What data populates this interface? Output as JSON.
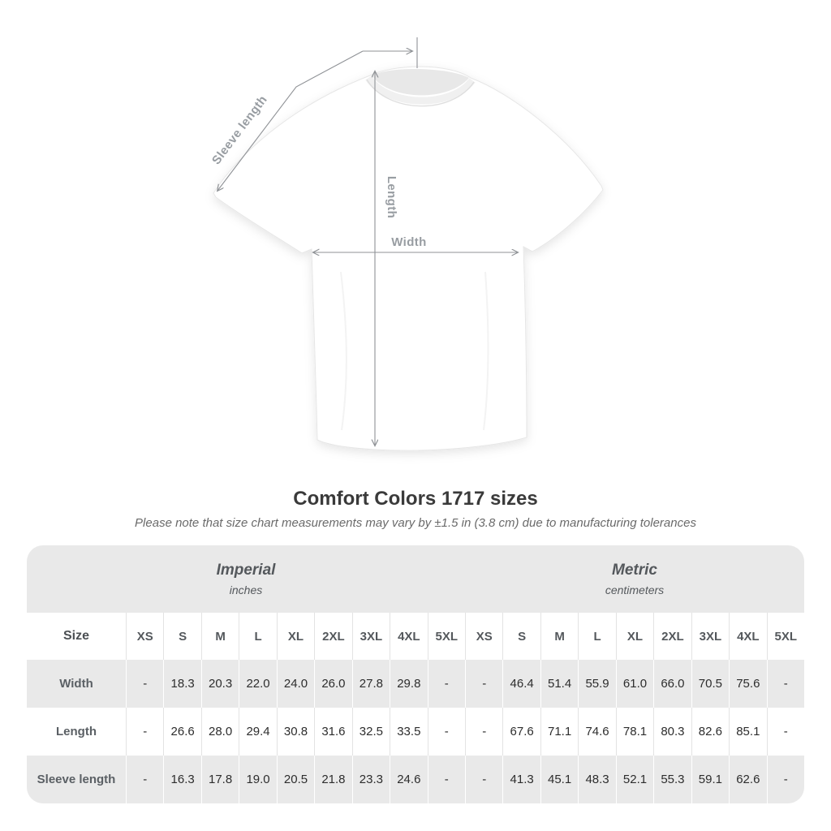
{
  "diagram": {
    "labels": {
      "sleeve_length": "Sleeve length",
      "length": "Length",
      "width": "Width"
    },
    "annotation_color": "#8f9296"
  },
  "header": {
    "title": "Comfort Colors 1717 sizes",
    "note": "Please note that size chart measurements may vary by ±1.5 in (3.8 cm) due to manufacturing tolerances"
  },
  "chart_data": {
    "type": "table",
    "title": "Comfort Colors 1717 sizes",
    "subtitle": "Please note that size chart measurements may vary by ±1.5 in (3.8 cm) due to manufacturing tolerances",
    "unit_groups": [
      {
        "label": "Imperial",
        "unit": "inches"
      },
      {
        "label": "Metric",
        "unit": "centimeters"
      }
    ],
    "size_column_header": "Size",
    "sizes": [
      "XS",
      "S",
      "M",
      "L",
      "XL",
      "2XL",
      "3XL",
      "4XL",
      "5XL"
    ],
    "rows": [
      {
        "label": "Width",
        "imperial": [
          "-",
          "18.3",
          "20.3",
          "22.0",
          "24.0",
          "26.0",
          "27.8",
          "29.8",
          "-"
        ],
        "metric": [
          "-",
          "46.4",
          "51.4",
          "55.9",
          "61.0",
          "66.0",
          "70.5",
          "75.6",
          "-"
        ]
      },
      {
        "label": "Length",
        "imperial": [
          "-",
          "26.6",
          "28.0",
          "29.4",
          "30.8",
          "31.6",
          "32.5",
          "33.5",
          "-"
        ],
        "metric": [
          "-",
          "67.6",
          "71.1",
          "74.6",
          "78.1",
          "80.3",
          "82.6",
          "85.1",
          "-"
        ]
      },
      {
        "label": "Sleeve length",
        "imperial": [
          "-",
          "16.3",
          "17.8",
          "19.0",
          "20.5",
          "21.8",
          "23.3",
          "24.6",
          "-"
        ],
        "metric": [
          "-",
          "41.3",
          "45.1",
          "48.3",
          "52.1",
          "55.3",
          "59.1",
          "62.6",
          "-"
        ]
      }
    ],
    "layout": {
      "alternating_row_color": "#e9e9e9",
      "corner_radius_px": 20
    }
  }
}
